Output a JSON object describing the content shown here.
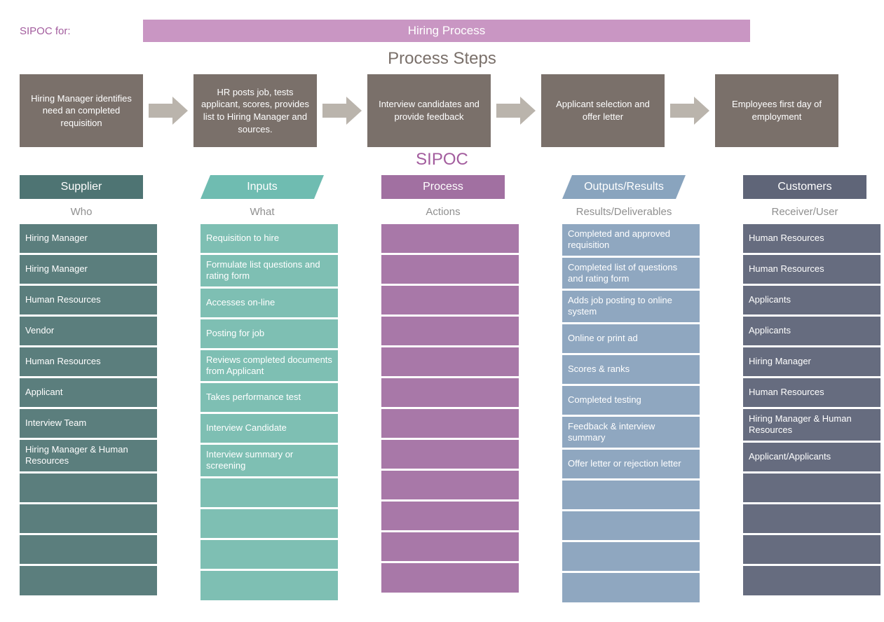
{
  "colors": {
    "title_bar": "#c996c3",
    "title_text": "#a35d9e",
    "steps_title": "#7a706a",
    "step_box": "#7a706a",
    "arrow": "#bab4ac",
    "supplier_header": "#4e7473",
    "supplier_cell": "#5b7e7d",
    "inputs_header": "#6fbcb1",
    "inputs_cell": "#7ebfb3",
    "process_header": "#a170a1",
    "process_cell": "#a878a8",
    "outputs_header": "#89a4be",
    "outputs_cell": "#8fa7c0",
    "customers_header": "#5f6578",
    "customers_cell": "#666c7f",
    "sub_header": "#8f8f8f"
  },
  "top": {
    "label": "SIPOC for:",
    "title": "Hiring Process"
  },
  "steps": {
    "heading": "Process Steps",
    "items": [
      "Hiring Manager identifies need an completed requisition",
      "HR posts job, tests applicant, scores, provides list to Hiring Manager and sources.",
      "Interview candidates and provide feedback",
      "Applicant selection and offer letter",
      "Employees first day of employment"
    ]
  },
  "sipoc_heading": "SIPOC",
  "columns": [
    {
      "header": "Supplier",
      "shape": "rect",
      "header_color_key": "supplier_header",
      "cell_color_key": "supplier_cell",
      "sub": "Who",
      "cells": [
        "Hiring Manager",
        "Hiring Manager",
        "Human Resources",
        "Vendor",
        "Human Resources",
        "Applicant",
        "Interview Team",
        "Hiring Manager & Human Resources",
        "",
        "",
        "",
        ""
      ]
    },
    {
      "header": "Inputs",
      "shape": "para",
      "header_color_key": "inputs_header",
      "cell_color_key": "inputs_cell",
      "sub": "What",
      "cells": [
        "Requisition to hire",
        "Formulate list questions and rating form",
        "Accesses on-line",
        "Posting for job",
        "Reviews completed documents from Applicant",
        "Takes performance test",
        "Interview Candidate",
        "Interview summary or screening",
        "",
        "",
        "",
        ""
      ]
    },
    {
      "header": "Process",
      "shape": "rect",
      "header_color_key": "process_header",
      "cell_color_key": "process_cell",
      "sub": "Actions",
      "cells": [
        "",
        "",
        "",
        "",
        "",
        "",
        "",
        "",
        "",
        "",
        "",
        ""
      ]
    },
    {
      "header": "Outputs/Results",
      "shape": "para",
      "header_color_key": "outputs_header",
      "cell_color_key": "outputs_cell",
      "sub": "Results/Deliverables",
      "cells": [
        "Completed and approved requisition",
        "Completed list of questions and rating form",
        "Adds job posting to online system",
        "Online or print ad",
        "Scores & ranks",
        "Completed testing",
        "Feedback & interview summary",
        "Offer letter or rejection letter",
        "",
        "",
        "",
        ""
      ]
    },
    {
      "header": "Customers",
      "shape": "rect",
      "header_color_key": "customers_header",
      "cell_color_key": "customers_cell",
      "sub": "Receiver/User",
      "cells": [
        "Human Resources",
        "Human Resources",
        "Applicants",
        "Applicants",
        "Hiring Manager",
        "Human Resources",
        "Hiring Manager & Human Resources",
        "Applicant/Applicants",
        "",
        "",
        "",
        ""
      ]
    }
  ]
}
